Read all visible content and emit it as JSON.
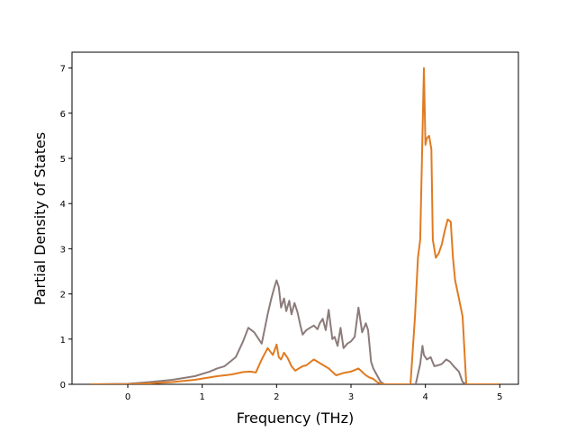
{
  "chart_data": {
    "type": "line",
    "title": "",
    "xlabel": "Frequency (THz)",
    "ylabel": "Partial Density of States",
    "xlim": [
      -0.75,
      5.25
    ],
    "ylim": [
      0,
      7.35
    ],
    "xticks": [
      0,
      1,
      2,
      3,
      4,
      5
    ],
    "yticks": [
      0,
      1,
      2,
      3,
      4,
      5,
      6,
      7
    ],
    "grid": false,
    "legend": "none",
    "series": [
      {
        "color": "#8c7b7b",
        "x": [
          -0.5,
          0.0,
          0.3,
          0.6,
          0.9,
          1.1,
          1.2,
          1.3,
          1.45,
          1.55,
          1.62,
          1.7,
          1.8,
          1.88,
          1.93,
          1.97,
          2.0,
          2.03,
          2.06,
          2.1,
          2.13,
          2.17,
          2.2,
          2.24,
          2.28,
          2.32,
          2.35,
          2.4,
          2.45,
          2.5,
          2.55,
          2.58,
          2.62,
          2.66,
          2.7,
          2.75,
          2.78,
          2.82,
          2.86,
          2.9,
          2.95,
          3.0,
          3.05,
          3.1,
          3.15,
          3.2,
          3.23,
          3.27,
          3.3,
          3.35,
          3.4,
          3.45,
          3.5,
          3.87,
          3.93,
          3.96,
          3.98,
          4.02,
          4.07,
          4.12,
          4.17,
          4.22,
          4.28,
          4.33,
          4.38,
          4.45,
          4.5,
          4.55,
          5.0
        ],
        "y": [
          0.0,
          0.01,
          0.05,
          0.1,
          0.18,
          0.28,
          0.35,
          0.4,
          0.6,
          0.95,
          1.25,
          1.15,
          0.9,
          1.55,
          1.9,
          2.15,
          2.3,
          2.15,
          1.7,
          1.9,
          1.62,
          1.85,
          1.55,
          1.8,
          1.6,
          1.3,
          1.1,
          1.2,
          1.25,
          1.3,
          1.22,
          1.35,
          1.45,
          1.2,
          1.65,
          1.0,
          1.05,
          0.85,
          1.25,
          0.8,
          0.9,
          0.95,
          1.05,
          1.7,
          1.15,
          1.35,
          1.2,
          0.5,
          0.35,
          0.2,
          0.05,
          0.0,
          0.0,
          0.0,
          0.45,
          0.85,
          0.65,
          0.55,
          0.6,
          0.4,
          0.42,
          0.45,
          0.55,
          0.5,
          0.4,
          0.28,
          0.05,
          0.0,
          0.0
        ]
      },
      {
        "color": "#e07b21",
        "x": [
          -0.5,
          0.0,
          0.3,
          0.6,
          0.9,
          1.2,
          1.4,
          1.55,
          1.65,
          1.72,
          1.8,
          1.88,
          1.95,
          2.0,
          2.03,
          2.06,
          2.1,
          2.15,
          2.2,
          2.25,
          2.3,
          2.35,
          2.4,
          2.5,
          2.6,
          2.7,
          2.8,
          2.9,
          3.0,
          3.1,
          3.2,
          3.25,
          3.3,
          3.35,
          3.4,
          3.45,
          3.5,
          3.8,
          3.86,
          3.9,
          3.93,
          3.96,
          3.98,
          4.0,
          4.02,
          4.05,
          4.08,
          4.1,
          4.14,
          4.18,
          4.22,
          4.26,
          4.3,
          4.34,
          4.37,
          4.4,
          4.45,
          4.5,
          4.55,
          5.0
        ],
        "y": [
          0.0,
          0.0,
          0.02,
          0.05,
          0.1,
          0.18,
          0.22,
          0.27,
          0.28,
          0.26,
          0.55,
          0.8,
          0.65,
          0.88,
          0.6,
          0.55,
          0.7,
          0.58,
          0.4,
          0.3,
          0.35,
          0.4,
          0.42,
          0.55,
          0.45,
          0.35,
          0.2,
          0.25,
          0.28,
          0.35,
          0.2,
          0.15,
          0.12,
          0.05,
          0.01,
          0.0,
          0.0,
          0.0,
          1.5,
          2.8,
          3.2,
          5.5,
          7.0,
          5.3,
          5.45,
          5.5,
          5.2,
          3.2,
          2.8,
          2.9,
          3.1,
          3.4,
          3.65,
          3.6,
          2.8,
          2.3,
          1.9,
          1.5,
          0.0,
          0.0
        ]
      }
    ]
  }
}
